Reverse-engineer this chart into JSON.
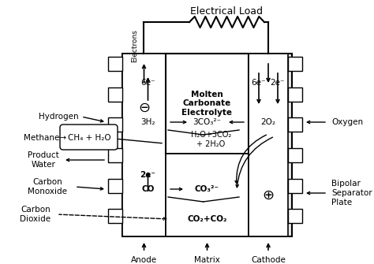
{
  "bg_color": "#ffffff",
  "figsize": [
    4.74,
    3.35
  ],
  "dpi": 100,
  "title": "Electrical Load",
  "elec_label": "Electrons",
  "molten_label": "Molten\nCarbonate\nElectrolyte",
  "anode_label": "Anode",
  "matrix_label": "Matrix",
  "cathode_label": "Cathode",
  "hydrogen_label": "Hydrogen",
  "methane_label": "Methane",
  "ch4_label": "CH₄ + H₂O",
  "prod_water_label": "Product\nWater",
  "carbon_mono_label": "Carbon\nMonoxide",
  "carbon_di_label": "Carbon\nDioxide",
  "oxygen_label": "Oxygen",
  "bipolar_label": "Bipolar\nSeparator\nPlate",
  "label_6e_anode": "6e⁻",
  "label_6e_cathode": "6e⁻",
  "label_2e_cathode": "2e⁻",
  "label_2e_lower": "2e⁻",
  "label_3h2": "3H₂",
  "label_3co3": "3CO₃²⁻",
  "label_2o2": "2O₂",
  "label_h2o3co2": "H₂O+3CO₂\n+ 2H₂O",
  "label_co": "CO",
  "label_co3": "CO₃²⁻",
  "label_co2co2": "CO₂+CO₂",
  "minus_sign": "⊖",
  "plus_sign": "⊕"
}
